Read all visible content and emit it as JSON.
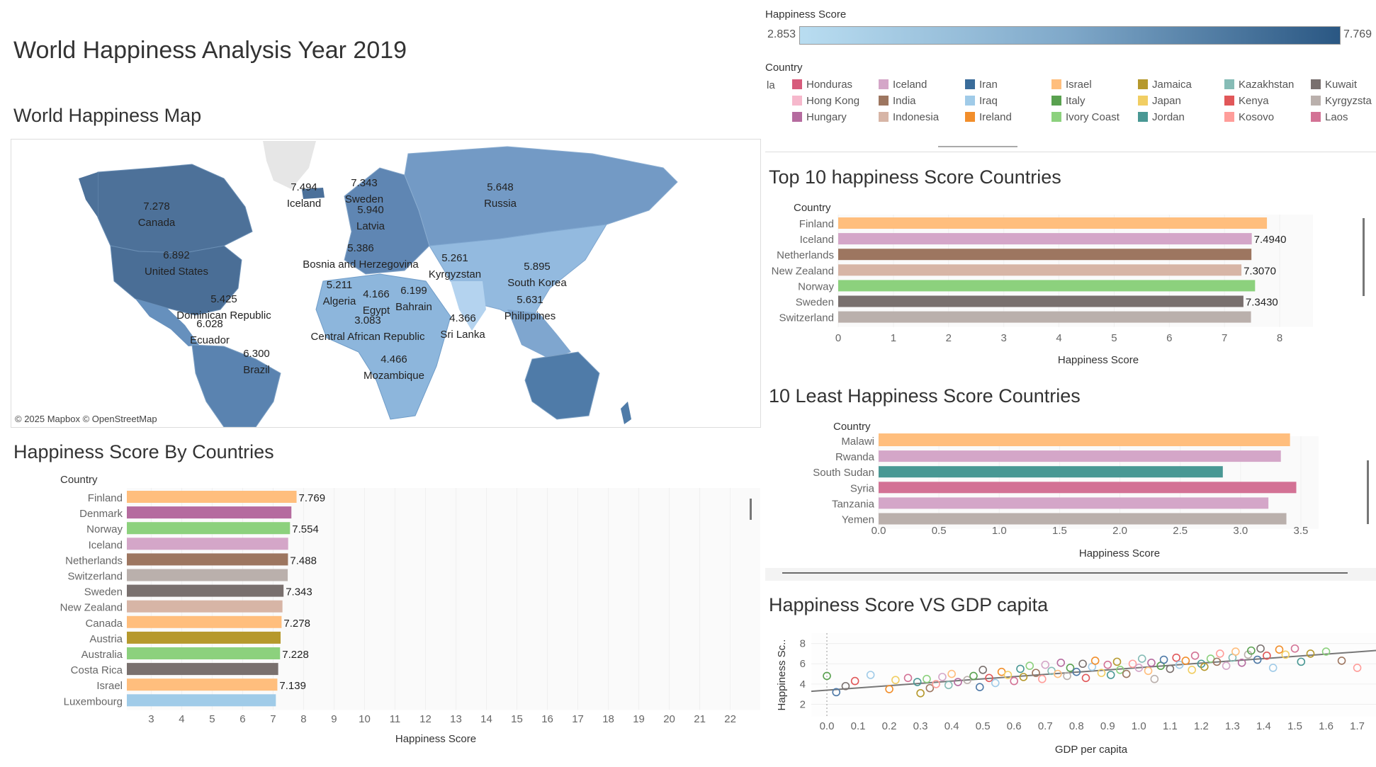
{
  "page": {
    "title": "World Happiness Analysis Year 2019",
    "map_title": "World Happiness Map",
    "bar_title": "Happiness Score By Countries",
    "top10_title": "Top 10 happiness  Score Countries",
    "least10_title": "10 Least Happiness Score Countries",
    "scatter_title": "Happiness Score VS GDP capita",
    "map_attribution": "© 2025 Mapbox © OpenStreetMap"
  },
  "colors": {
    "map_high": "#2a5783",
    "map_low": "#b9ddf1"
  },
  "score_legend": {
    "title": "Happiness Score",
    "min": "2.853",
    "max": "7.769"
  },
  "country_legend": {
    "title": "Country",
    "cut_label": "la",
    "items": [
      {
        "name": "Honduras",
        "color": "#d75c7c"
      },
      {
        "name": "Hong Kong",
        "color": "#f6b8cc"
      },
      {
        "name": "Hungary",
        "color": "#b56b9f"
      },
      {
        "name": "Iceland",
        "color": "#d4a6c8"
      },
      {
        "name": "India",
        "color": "#9d7660"
      },
      {
        "name": "Indonesia",
        "color": "#d7b5a6"
      },
      {
        "name": "Iran",
        "color": "#3a6c9a"
      },
      {
        "name": "Iraq",
        "color": "#a0cbe8"
      },
      {
        "name": "Ireland",
        "color": "#f28e2b"
      },
      {
        "name": "Israel",
        "color": "#ffbe7d"
      },
      {
        "name": "Italy",
        "color": "#59a14f"
      },
      {
        "name": "Ivory Coast",
        "color": "#8cd17d"
      },
      {
        "name": "Jamaica",
        "color": "#b6992d"
      },
      {
        "name": "Japan",
        "color": "#f1ce63"
      },
      {
        "name": "Jordan",
        "color": "#499894"
      },
      {
        "name": "Kazakhstan",
        "color": "#86bcb6"
      },
      {
        "name": "Kenya",
        "color": "#e15759"
      },
      {
        "name": "Kosovo",
        "color": "#ff9d9a"
      },
      {
        "name": "Kuwait",
        "color": "#79706e"
      },
      {
        "name": "Kyrgyzsta",
        "color": "#bab0ac"
      },
      {
        "name": "Laos",
        "color": "#d37295"
      }
    ]
  },
  "map_labels": [
    {
      "value": "7.278",
      "name": "Canada"
    },
    {
      "value": "6.892",
      "name": "United States"
    },
    {
      "value": "5.425",
      "name": "Dominican Republic"
    },
    {
      "value": "6.028",
      "name": "Ecuador"
    },
    {
      "value": "6.300",
      "name": "Brazil"
    },
    {
      "value": "7.494",
      "name": "Iceland"
    },
    {
      "value": "7.343",
      "name": "Sweden"
    },
    {
      "value": "5.940",
      "name": "Latvia"
    },
    {
      "value": "5.386",
      "name": "Bosnia and Herzegovina"
    },
    {
      "value": "5.211",
      "name": "Algeria"
    },
    {
      "value": "4.166",
      "name": "Egypt"
    },
    {
      "value": "6.199",
      "name": "Bahrain"
    },
    {
      "value": "3.083",
      "name": "Central African Republic"
    },
    {
      "value": "4.466",
      "name": "Mozambique"
    },
    {
      "value": "5.648",
      "name": "Russia"
    },
    {
      "value": "5.261",
      "name": "Kyrgyzstan"
    },
    {
      "value": "4.366",
      "name": "Sri Lanka"
    },
    {
      "value": "5.895",
      "name": "South Korea"
    },
    {
      "value": "5.631",
      "name": "Philippines"
    }
  ],
  "chart_data": [
    {
      "type": "bar",
      "orientation": "horizontal",
      "title": "Happiness Score By Countries",
      "ylabel": "Country",
      "xlabel": "Happiness Score",
      "xlim": [
        2.2,
        22.8
      ],
      "xticks": [
        3,
        4,
        5,
        6,
        7,
        8,
        9,
        10,
        11,
        12,
        13,
        14,
        15,
        16,
        17,
        18,
        19,
        20,
        21,
        22
      ],
      "categories": [
        "Finland",
        "Denmark",
        "Norway",
        "Iceland",
        "Netherlands",
        "Switzerland",
        "Sweden",
        "New Zealand",
        "Canada",
        "Austria",
        "Australia",
        "Costa Rica",
        "Israel",
        "Luxembourg"
      ],
      "values": [
        7.769,
        7.6,
        7.554,
        7.494,
        7.488,
        7.48,
        7.343,
        7.307,
        7.278,
        7.246,
        7.228,
        7.167,
        7.139,
        7.09
      ],
      "data_labels": [
        "7.769",
        "",
        "7.554",
        "",
        "7.488",
        "",
        "7.343",
        "",
        "7.278",
        "",
        "7.228",
        "",
        "7.139",
        ""
      ],
      "colors": [
        "#ffbe7d",
        "#b56b9f",
        "#8cd17d",
        "#d4a6c8",
        "#9d7660",
        "#bab0ac",
        "#79706e",
        "#d7b5a6",
        "#ffbe7d",
        "#b6992d",
        "#8cd17d",
        "#79706e",
        "#ffbe7d",
        "#a0cbe8"
      ]
    },
    {
      "type": "bar",
      "orientation": "horizontal",
      "title": "Top 10 happiness  Score Countries",
      "ylabel": "Country",
      "xlabel": "Happiness Score",
      "xlim": [
        0,
        8.5
      ],
      "xticks": [
        0,
        1,
        2,
        3,
        4,
        5,
        6,
        7,
        8
      ],
      "categories": [
        "Finland",
        "Iceland",
        "Netherlands",
        "New Zealand",
        "Norway",
        "Sweden",
        "Switzerland"
      ],
      "values": [
        7.769,
        7.494,
        7.488,
        7.307,
        7.554,
        7.343,
        7.48
      ],
      "data_labels": [
        "",
        "7.4940",
        "",
        "7.3070",
        "",
        "7.3430",
        ""
      ],
      "colors": [
        "#ffbe7d",
        "#d4a6c8",
        "#9d7660",
        "#d7b5a6",
        "#8cd17d",
        "#79706e",
        "#bab0ac"
      ]
    },
    {
      "type": "bar",
      "orientation": "horizontal",
      "title": "10 Least Happiness Score Countries",
      "ylabel": "Country",
      "xlabel": "Happiness Score",
      "xlim": [
        0,
        3.6
      ],
      "xticks": [
        "0.0",
        "0.5",
        "1.0",
        "1.5",
        "2.0",
        "2.5",
        "3.0",
        "3.5"
      ],
      "categories": [
        "Malawi",
        "Rwanda",
        "South Sudan",
        "Syria",
        "Tanzania",
        "Yemen"
      ],
      "values": [
        3.41,
        3.334,
        2.853,
        3.462,
        3.231,
        3.38
      ],
      "colors": [
        "#ffbe7d",
        "#d4a6c8",
        "#499894",
        "#d37295",
        "#d4a6c8",
        "#bab0ac"
      ]
    },
    {
      "type": "scatter",
      "title": "Happiness Score VS GDP capita",
      "xlabel": "GDP per capita",
      "ylabel": "Happiness Sc..",
      "xlim": [
        -0.05,
        1.76
      ],
      "ylim": [
        1.2,
        8.6
      ],
      "xticks": [
        "0.0",
        "0.1",
        "0.2",
        "0.3",
        "0.4",
        "0.5",
        "0.6",
        "0.7",
        "0.8",
        "0.9",
        "1.0",
        "1.1",
        "1.2",
        "1.3",
        "1.4",
        "1.5",
        "1.6",
        "1.7"
      ],
      "yticks": [
        2,
        4,
        6,
        8
      ],
      "trend": {
        "slope": 2.22,
        "intercept": 3.4
      },
      "points": [
        [
          0.0,
          4.8
        ],
        [
          0.03,
          3.2
        ],
        [
          0.06,
          3.8
        ],
        [
          0.09,
          4.3
        ],
        [
          0.14,
          4.9
        ],
        [
          0.2,
          3.5
        ],
        [
          0.22,
          4.4
        ],
        [
          0.26,
          4.6
        ],
        [
          0.29,
          4.2
        ],
        [
          0.3,
          3.1
        ],
        [
          0.32,
          4.5
        ],
        [
          0.33,
          3.6
        ],
        [
          0.35,
          4.0
        ],
        [
          0.37,
          4.7
        ],
        [
          0.39,
          3.9
        ],
        [
          0.4,
          5.0
        ],
        [
          0.42,
          4.2
        ],
        [
          0.45,
          4.4
        ],
        [
          0.47,
          4.8
        ],
        [
          0.49,
          3.7
        ],
        [
          0.5,
          5.4
        ],
        [
          0.52,
          4.6
        ],
        [
          0.54,
          4.1
        ],
        [
          0.56,
          5.2
        ],
        [
          0.58,
          4.9
        ],
        [
          0.6,
          4.3
        ],
        [
          0.62,
          5.5
        ],
        [
          0.63,
          4.7
        ],
        [
          0.65,
          5.8
        ],
        [
          0.67,
          5.1
        ],
        [
          0.69,
          4.5
        ],
        [
          0.7,
          5.9
        ],
        [
          0.72,
          5.3
        ],
        [
          0.74,
          5.0
        ],
        [
          0.75,
          6.1
        ],
        [
          0.77,
          4.8
        ],
        [
          0.78,
          5.6
        ],
        [
          0.8,
          5.2
        ],
        [
          0.82,
          6.0
        ],
        [
          0.83,
          4.6
        ],
        [
          0.85,
          5.7
        ],
        [
          0.86,
          6.3
        ],
        [
          0.88,
          5.1
        ],
        [
          0.9,
          5.9
        ],
        [
          0.91,
          4.9
        ],
        [
          0.93,
          6.2
        ],
        [
          0.94,
          5.4
        ],
        [
          0.96,
          5.0
        ],
        [
          0.98,
          6.0
        ],
        [
          1.0,
          5.6
        ],
        [
          1.01,
          6.5
        ],
        [
          1.03,
          5.3
        ],
        [
          1.04,
          6.1
        ],
        [
          1.05,
          4.5
        ],
        [
          1.07,
          5.8
        ],
        [
          1.08,
          6.4
        ],
        [
          1.1,
          5.5
        ],
        [
          1.12,
          6.6
        ],
        [
          1.13,
          5.9
        ],
        [
          1.15,
          6.3
        ],
        [
          1.17,
          5.4
        ],
        [
          1.18,
          6.8
        ],
        [
          1.2,
          6.0
        ],
        [
          1.21,
          5.7
        ],
        [
          1.23,
          6.5
        ],
        [
          1.25,
          6.2
        ],
        [
          1.26,
          7.0
        ],
        [
          1.28,
          5.8
        ],
        [
          1.3,
          6.6
        ],
        [
          1.31,
          7.2
        ],
        [
          1.33,
          6.1
        ],
        [
          1.35,
          6.9
        ],
        [
          1.36,
          7.3
        ],
        [
          1.38,
          6.4
        ],
        [
          1.39,
          7.5
        ],
        [
          1.41,
          6.8
        ],
        [
          1.43,
          5.6
        ],
        [
          1.45,
          7.4
        ],
        [
          1.47,
          6.9
        ],
        [
          1.5,
          7.5
        ],
        [
          1.52,
          6.2
        ],
        [
          1.55,
          7.0
        ],
        [
          1.6,
          7.2
        ],
        [
          1.65,
          6.3
        ],
        [
          1.7,
          5.6
        ]
      ],
      "point_colors": [
        "#59a14f",
        "#4e79a7",
        "#79706e",
        "#e15759",
        "#a0cbe8",
        "#f28e2b",
        "#f1ce63",
        "#d37295",
        "#499894",
        "#b6992d",
        "#8cd17d",
        "#9d7660",
        "#ff9d9a",
        "#d4a6c8",
        "#86bcb6",
        "#ffbe7d",
        "#b56b9f",
        "#bab0ac"
      ]
    }
  ]
}
